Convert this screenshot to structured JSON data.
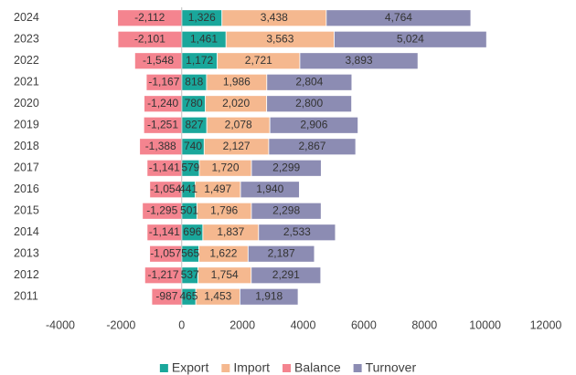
{
  "chart_data": {
    "type": "stacked-bar-horizontal",
    "categories": [
      "2024",
      "2023",
      "2022",
      "2021",
      "2020",
      "2019",
      "2018",
      "2017",
      "2016",
      "2015",
      "2014",
      "2013",
      "2012",
      "2011"
    ],
    "series": [
      {
        "name": "Export",
        "color": "#1aa79b",
        "values": [
          1326,
          1461,
          1172,
          818,
          780,
          827,
          740,
          579,
          441,
          501,
          696,
          565,
          537,
          465
        ],
        "value_labels": [
          "1,326",
          "1,461",
          "1,172",
          "818",
          "780",
          "827",
          "740",
          "579",
          "441",
          "501",
          "696",
          "565",
          "537",
          "465"
        ]
      },
      {
        "name": "Import",
        "color": "#f5b88f",
        "values": [
          3438,
          3563,
          2721,
          1986,
          2020,
          2078,
          2127,
          1720,
          1497,
          1796,
          1837,
          1622,
          1754,
          1453
        ],
        "value_labels": [
          "3,438",
          "3,563",
          "2,721",
          "1,986",
          "2,020",
          "2,078",
          "2,127",
          "1,720",
          "1,497",
          "1,796",
          "1,837",
          "1,622",
          "1,754",
          "1,453"
        ]
      },
      {
        "name": "Balance",
        "color": "#f4848f",
        "values": [
          -2112,
          -2101,
          -1548,
          -1167,
          -1240,
          -1251,
          -1388,
          -1141,
          -1054,
          -1295,
          -1141,
          -1057,
          -1217,
          -987
        ],
        "value_labels": [
          "-2,112",
          "-2,101",
          "-1,548",
          "-1,167",
          "-1,240",
          "-1,251",
          "-1,388",
          "-1,141",
          "-1,054",
          "-1,295",
          "-1,141",
          "-1,057",
          "-1,217",
          "-987"
        ]
      },
      {
        "name": "Turnover",
        "color": "#8c8cb3",
        "values": [
          4764,
          5024,
          3893,
          2804,
          2800,
          2906,
          2867,
          2299,
          1940,
          2298,
          2533,
          2187,
          2291,
          1918
        ],
        "value_labels": [
          "4,764",
          "5,024",
          "3,893",
          "2,804",
          "2,800",
          "2,906",
          "2,867",
          "2,299",
          "1,940",
          "2,298",
          "2,533",
          "2,187",
          "2,291",
          "1,918"
        ]
      }
    ],
    "xlim": [
      -4000,
      12000
    ],
    "xticks": [
      -4000,
      -2000,
      0,
      2000,
      4000,
      6000,
      8000,
      10000,
      12000
    ],
    "grid": false,
    "legend": "bottom"
  }
}
